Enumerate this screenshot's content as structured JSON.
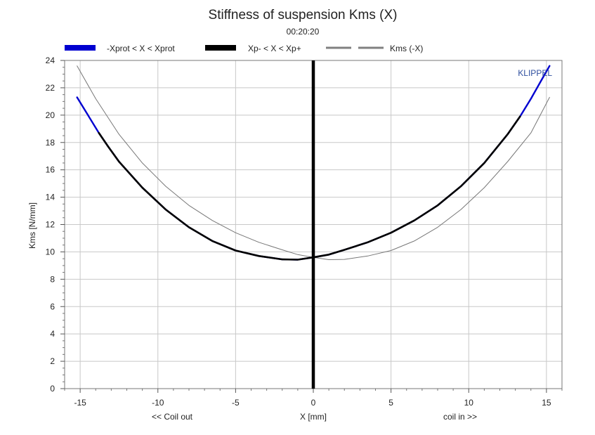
{
  "chart_data": {
    "type": "line",
    "title": "Stiffness of suspension Kms (X)",
    "subtitle": "00:20:20",
    "xlabel": "X [mm]",
    "xlabel_left": "<< Coil out",
    "xlabel_right": "coil in >>",
    "ylabel": "Kms [N/mm]",
    "watermark": "KLIPPEL",
    "xlim": [
      -16,
      16
    ],
    "ylim": [
      0,
      24
    ],
    "xticks": [
      -15,
      -10,
      -5,
      0,
      5,
      10,
      15
    ],
    "yticks": [
      0,
      2,
      4,
      6,
      8,
      10,
      12,
      14,
      16,
      18,
      20,
      22,
      24
    ],
    "grid": true,
    "legend_position": "top",
    "marker_line_x": 0,
    "series": [
      {
        "name": "-Xprot < X < Xprot",
        "color": "#0000d0",
        "x": [
          -15.2,
          -14.5,
          -13.8,
          -13.2,
          -12.5,
          -11,
          -9.5,
          -8,
          -6.5,
          -5,
          -3.5,
          -2,
          -1,
          0,
          1,
          2,
          3.5,
          5,
          6.5,
          8,
          9.5,
          11,
          12.5,
          13.3,
          14,
          14.6,
          15.2
        ],
        "values": [
          21.3,
          20.0,
          18.7,
          17.7,
          16.6,
          14.7,
          13.1,
          11.8,
          10.8,
          10.1,
          9.7,
          9.45,
          9.43,
          9.6,
          9.8,
          10.15,
          10.7,
          11.4,
          12.3,
          13.4,
          14.8,
          16.5,
          18.6,
          19.9,
          21.2,
          22.4,
          23.6
        ]
      },
      {
        "name": "Xp- < X < Xp+",
        "color": "#000000",
        "x": [
          -13.8,
          -13.2,
          -12.5,
          -11,
          -9.5,
          -8,
          -6.5,
          -5,
          -3.5,
          -2,
          -1,
          0,
          1,
          2,
          3.5,
          5,
          6.5,
          8,
          9.5,
          11,
          12.5,
          13.3
        ],
        "values": [
          18.7,
          17.7,
          16.6,
          14.7,
          13.1,
          11.8,
          10.8,
          10.1,
          9.7,
          9.45,
          9.43,
          9.6,
          9.8,
          10.15,
          10.7,
          11.4,
          12.3,
          13.4,
          14.8,
          16.5,
          18.6,
          19.9
        ]
      },
      {
        "name": "Kms (-X)",
        "color": "#777777",
        "x": [
          -15.2,
          -14,
          -12.5,
          -11,
          -9.5,
          -8,
          -6.5,
          -5,
          -3.5,
          -2,
          -1,
          0,
          1,
          2,
          3.5,
          5,
          6.5,
          8,
          9.5,
          11,
          12.5,
          14,
          15.2
        ],
        "values": [
          23.6,
          21.2,
          18.6,
          16.5,
          14.8,
          13.4,
          12.3,
          11.4,
          10.7,
          10.15,
          9.8,
          9.6,
          9.43,
          9.45,
          9.7,
          10.1,
          10.8,
          11.8,
          13.1,
          14.7,
          16.6,
          18.7,
          21.3
        ]
      }
    ]
  }
}
